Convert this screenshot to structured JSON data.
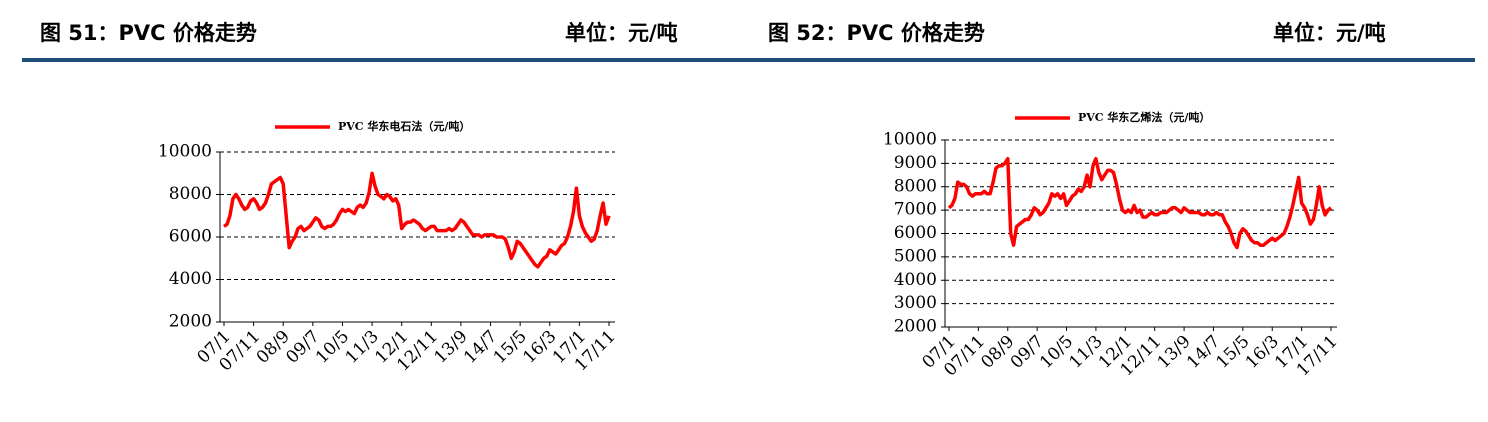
{
  "chart_data": [
    {
      "type": "line",
      "title": "图 51：PVC 价格走势",
      "unit": "单位：元/吨",
      "categories": [
        "07/1",
        null,
        null,
        null,
        null,
        null,
        null,
        null,
        null,
        null,
        "07/11",
        null,
        null,
        null,
        null,
        null,
        null,
        null,
        null,
        null,
        "08/9",
        null,
        null,
        null,
        null,
        null,
        null,
        null,
        null,
        null,
        "09/7",
        null,
        null,
        null,
        null,
        null,
        null,
        null,
        null,
        null,
        "10/5",
        null,
        null,
        null,
        null,
        null,
        null,
        null,
        null,
        null,
        "11/3",
        null,
        null,
        null,
        null,
        null,
        null,
        null,
        null,
        null,
        "12/1",
        null,
        null,
        null,
        null,
        null,
        null,
        null,
        null,
        null,
        "12/11",
        null,
        null,
        null,
        null,
        null,
        null,
        null,
        null,
        null,
        "13/9",
        null,
        null,
        null,
        null,
        null,
        null,
        null,
        null,
        null,
        "14/7",
        null,
        null,
        null,
        null,
        null,
        null,
        null,
        null,
        null,
        "15/5",
        null,
        null,
        null,
        null,
        null,
        null,
        null,
        null,
        null,
        "16/3",
        null,
        null,
        null,
        null,
        null,
        null,
        null,
        null,
        null,
        "17/1",
        null,
        null,
        null,
        null,
        null,
        null,
        null,
        null,
        null,
        "17/11"
      ],
      "series": [
        {
          "name": "PVC 华东电石法（元/吨）",
          "color": "#ff0000",
          "values": [
            6500,
            6600,
            7000,
            7800,
            8000,
            7800,
            7500,
            7300,
            7400,
            7700,
            7800,
            7600,
            7300,
            7400,
            7600,
            8000,
            8500,
            8600,
            8700,
            8800,
            8500,
            7000,
            5500,
            5800,
            6000,
            6400,
            6500,
            6300,
            6400,
            6500,
            6700,
            6900,
            6800,
            6500,
            6400,
            6500,
            6500,
            6600,
            6800,
            7100,
            7300,
            7200,
            7300,
            7200,
            7100,
            7400,
            7500,
            7400,
            7600,
            8100,
            9000,
            8400,
            8000,
            7900,
            7800,
            8000,
            7900,
            7700,
            7800,
            7500,
            6400,
            6600,
            6700,
            6700,
            6800,
            6700,
            6600,
            6400,
            6300,
            6400,
            6500,
            6500,
            6300,
            6300,
            6300,
            6300,
            6400,
            6300,
            6400,
            6600,
            6800,
            6700,
            6500,
            6300,
            6100,
            6100,
            6100,
            6000,
            6100,
            6100,
            6100,
            6100,
            6000,
            6000,
            6000,
            5900,
            5500,
            5000,
            5300,
            5800,
            5700,
            5500,
            5300,
            5100,
            4900,
            4700,
            4600,
            4800,
            5000,
            5100,
            5400,
            5300,
            5200,
            5400,
            5600,
            5700,
            6000,
            6500,
            7200,
            8300,
            7000,
            6500,
            6200,
            6000,
            5800,
            5900,
            6300,
            7000,
            7600,
            6600,
            7000
          ]
        }
      ],
      "ylim": [
        2000,
        10000
      ],
      "yticks": [
        2000,
        4000,
        6000,
        8000,
        10000
      ],
      "grid": true
    },
    {
      "type": "line",
      "title": "图 52：PVC 价格走势",
      "unit": "单位：元/吨",
      "categories": [
        "07/1",
        null,
        null,
        null,
        null,
        null,
        null,
        null,
        null,
        null,
        "07/11",
        null,
        null,
        null,
        null,
        null,
        null,
        null,
        null,
        null,
        "08/9",
        null,
        null,
        null,
        null,
        null,
        null,
        null,
        null,
        null,
        "09/7",
        null,
        null,
        null,
        null,
        null,
        null,
        null,
        null,
        null,
        "10/5",
        null,
        null,
        null,
        null,
        null,
        null,
        null,
        null,
        null,
        "11/3",
        null,
        null,
        null,
        null,
        null,
        null,
        null,
        null,
        null,
        "12/1",
        null,
        null,
        null,
        null,
        null,
        null,
        null,
        null,
        null,
        "12/11",
        null,
        null,
        null,
        null,
        null,
        null,
        null,
        null,
        null,
        "13/9",
        null,
        null,
        null,
        null,
        null,
        null,
        null,
        null,
        null,
        "14/7",
        null,
        null,
        null,
        null,
        null,
        null,
        null,
        null,
        null,
        "15/5",
        null,
        null,
        null,
        null,
        null,
        null,
        null,
        null,
        null,
        "16/3",
        null,
        null,
        null,
        null,
        null,
        null,
        null,
        null,
        null,
        "17/1",
        null,
        null,
        null,
        null,
        null,
        null,
        null,
        null,
        null,
        "17/11"
      ],
      "series": [
        {
          "name": "PVC 华东乙烯法（元/吨）",
          "color": "#ff0000",
          "values": [
            7100,
            7200,
            7500,
            8200,
            8100,
            8100,
            8000,
            7700,
            7600,
            7700,
            7700,
            7700,
            7800,
            7700,
            7700,
            8200,
            8800,
            8900,
            8900,
            9000,
            9200,
            6000,
            5500,
            6300,
            6400,
            6500,
            6600,
            6600,
            6800,
            7100,
            7000,
            6800,
            6900,
            7100,
            7300,
            7700,
            7600,
            7700,
            7500,
            7700,
            7200,
            7400,
            7600,
            7700,
            7900,
            7800,
            8000,
            8500,
            8000,
            8900,
            9200,
            8600,
            8300,
            8500,
            8700,
            8700,
            8600,
            8100,
            7500,
            7000,
            6900,
            7000,
            6900,
            7200,
            6900,
            7000,
            6700,
            6700,
            6800,
            6900,
            6800,
            6800,
            6900,
            6900,
            6900,
            7000,
            7100,
            7100,
            7000,
            6900,
            7100,
            7000,
            6900,
            6900,
            6900,
            6900,
            6800,
            6800,
            6900,
            6800,
            6800,
            6900,
            6800,
            6800,
            6500,
            6300,
            6000,
            5600,
            5400,
            6000,
            6200,
            6100,
            5900,
            5700,
            5600,
            5600,
            5500,
            5500,
            5600,
            5700,
            5800,
            5700,
            5800,
            5900,
            6000,
            6300,
            6700,
            7200,
            7800,
            8400,
            7300,
            7100,
            6800,
            6400,
            6600,
            7200,
            8000,
            7200,
            6800,
            7000,
            7100
          ]
        }
      ],
      "ylim": [
        2000,
        10000
      ],
      "yticks": [
        2000,
        3000,
        4000,
        5000,
        6000,
        7000,
        8000,
        9000,
        10000
      ],
      "grid": true
    }
  ]
}
